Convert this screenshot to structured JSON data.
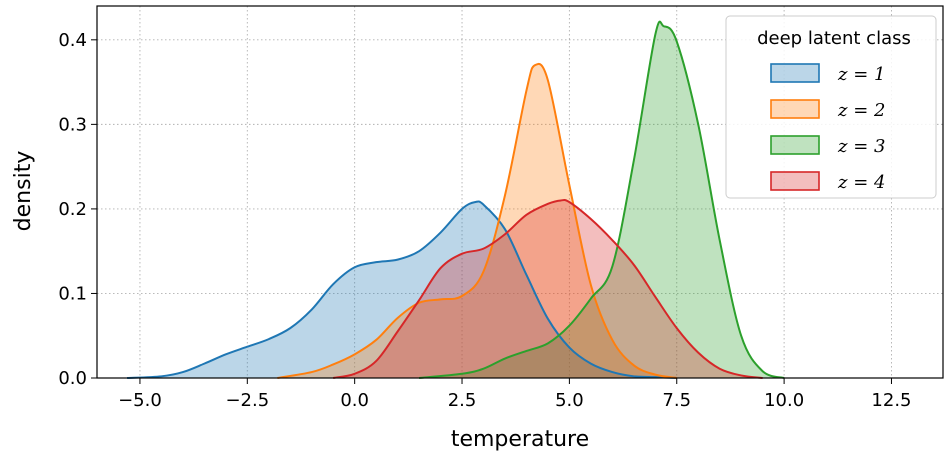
{
  "chart_data": {
    "type": "area",
    "title": "",
    "xlabel": "temperature",
    "ylabel": "density",
    "xlim": [
      -6.0,
      13.7
    ],
    "ylim": [
      0.0,
      0.44
    ],
    "xticks": [
      -5.0,
      -2.5,
      0.0,
      2.5,
      5.0,
      7.5,
      10.0,
      12.5
    ],
    "xtick_labels": [
      "−5.0",
      "−2.5",
      "0.0",
      "2.5",
      "5.0",
      "7.5",
      "10.0",
      "12.5"
    ],
    "yticks": [
      0.0,
      0.1,
      0.2,
      0.3,
      0.4
    ],
    "ytick_labels": [
      "0.0",
      "0.1",
      "0.2",
      "0.3",
      "0.4"
    ],
    "grid": true,
    "legend": {
      "title": "deep latent class",
      "placement": "top-right"
    },
    "series": [
      {
        "name": "z = 1",
        "color": "#1f77b4",
        "x": [
          -5.3,
          -4.5,
          -4.0,
          -3.5,
          -3.0,
          -2.5,
          -2.0,
          -1.5,
          -1.0,
          -0.5,
          0.0,
          0.5,
          1.0,
          1.5,
          2.0,
          2.5,
          2.8,
          3.0,
          3.5,
          4.0,
          4.5,
          5.0,
          5.5,
          6.0,
          6.5,
          7.0,
          7.5
        ],
        "y": [
          0.0,
          0.002,
          0.007,
          0.017,
          0.028,
          0.037,
          0.046,
          0.059,
          0.081,
          0.111,
          0.131,
          0.137,
          0.14,
          0.15,
          0.172,
          0.2,
          0.208,
          0.205,
          0.176,
          0.122,
          0.07,
          0.036,
          0.017,
          0.007,
          0.002,
          0.001,
          0.0
        ]
      },
      {
        "name": "z = 2",
        "color": "#ff7f0e",
        "x": [
          -1.8,
          -1.0,
          -0.5,
          0.0,
          0.5,
          1.0,
          1.5,
          2.0,
          2.5,
          3.0,
          3.5,
          4.0,
          4.2,
          4.5,
          5.0,
          5.5,
          6.0,
          6.5,
          7.0,
          7.5
        ],
        "y": [
          0.0,
          0.007,
          0.016,
          0.028,
          0.045,
          0.071,
          0.089,
          0.093,
          0.097,
          0.126,
          0.216,
          0.34,
          0.37,
          0.352,
          0.228,
          0.11,
          0.045,
          0.015,
          0.004,
          0.0
        ]
      },
      {
        "name": "z = 3",
        "color": "#2ca02c",
        "x": [
          1.5,
          2.5,
          3.0,
          3.5,
          4.0,
          4.5,
          5.0,
          5.5,
          6.0,
          6.5,
          7.0,
          7.2,
          7.5,
          8.0,
          8.5,
          9.0,
          9.5,
          10.0
        ],
        "y": [
          0.0,
          0.005,
          0.011,
          0.023,
          0.032,
          0.041,
          0.062,
          0.094,
          0.132,
          0.257,
          0.406,
          0.416,
          0.398,
          0.3,
          0.163,
          0.05,
          0.008,
          0.0
        ]
      },
      {
        "name": "z = 4",
        "color": "#d62728",
        "x": [
          -0.5,
          0.0,
          0.5,
          1.0,
          1.5,
          2.0,
          2.5,
          3.0,
          3.5,
          4.0,
          4.5,
          4.8,
          5.0,
          5.5,
          6.0,
          6.5,
          7.0,
          7.5,
          8.0,
          8.5,
          9.0,
          9.5
        ],
        "y": [
          0.0,
          0.005,
          0.02,
          0.055,
          0.092,
          0.13,
          0.147,
          0.153,
          0.17,
          0.193,
          0.206,
          0.21,
          0.208,
          0.188,
          0.163,
          0.134,
          0.096,
          0.059,
          0.03,
          0.011,
          0.003,
          0.0
        ]
      }
    ]
  }
}
